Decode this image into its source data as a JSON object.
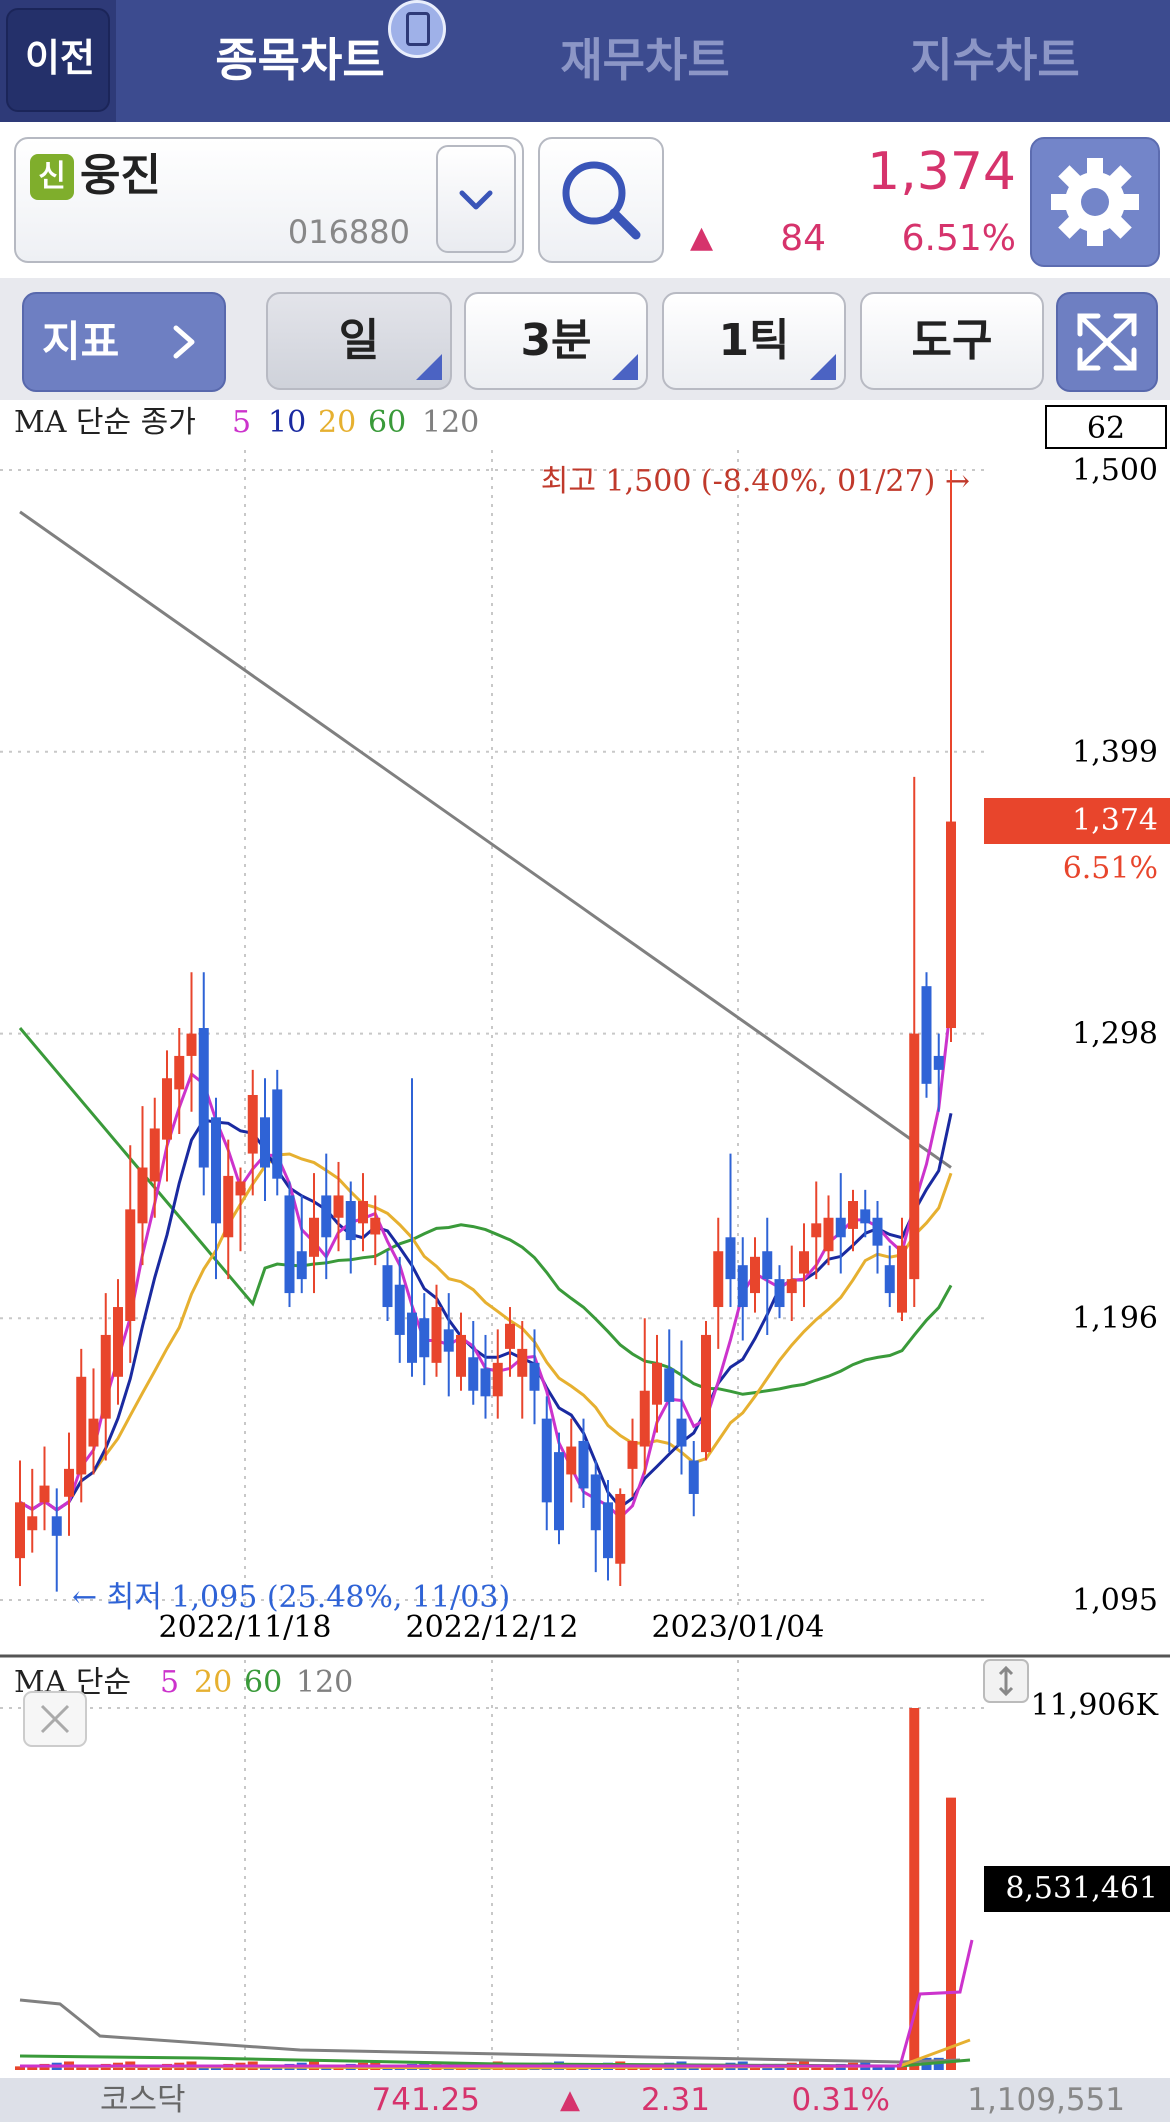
{
  "header": {
    "back_label": "이전",
    "tabs": [
      {
        "label": "종목차트",
        "active": true
      },
      {
        "label": "재무차트",
        "active": false
      },
      {
        "label": "지수차트",
        "active": false
      }
    ]
  },
  "stock": {
    "badge": "신",
    "name": "웅진",
    "code": "016880",
    "price": "1,374",
    "change": "84",
    "change_pct": "6.51%"
  },
  "toolbar": {
    "indicator_label": "지표",
    "period_label": "일",
    "minute_label": "3분",
    "tick_label": "1틱",
    "tools_label": "도구"
  },
  "price_chart": {
    "legend_prefix": "MA 단순 종가",
    "ma_periods": [
      "5",
      "10",
      "20",
      "60",
      "120"
    ],
    "count_box": "62",
    "y_labels": [
      "1,500",
      "1,399",
      "1,298",
      "1,196",
      "1,095"
    ],
    "current_price": "1,374",
    "current_pct": "6.51%",
    "high_annotation": "최고 1,500 (-8.40%, 01/27) →",
    "low_annotation": "← 최저 1,095 (25.48%, 11/03)",
    "x_labels": [
      "2022/11/18",
      "2022/12/12",
      "2023/01/04"
    ]
  },
  "volume_chart": {
    "legend_prefix": "MA 단순",
    "ma_periods": [
      "5",
      "20",
      "60",
      "120"
    ],
    "max_label": "11,906K",
    "current_volume": "8,531,461"
  },
  "footer": {
    "index_name": "코스닥",
    "index_value": "741.25",
    "index_change": "2.31",
    "index_pct": "0.31%",
    "index_volume": "1,109,551"
  },
  "colors": {
    "up": "#e8452c",
    "down": "#2f63d6",
    "ma5": "#cc33cc",
    "ma10": "#1a2aa0",
    "ma20": "#e6b030",
    "ma60": "#3a9a3a",
    "ma120": "#808080",
    "accent": "#d6336c",
    "header": "#3c4b8f"
  },
  "chart_data": {
    "type": "candlestick",
    "y_unit": "KRW",
    "ylim": [
      1095,
      1500
    ],
    "dates_labeled": [
      "2022/11/18",
      "2022/12/12",
      "2023/01/04"
    ],
    "candles": [
      [
        1110,
        1130,
        1100,
        1145
      ],
      [
        1120,
        1125,
        1112,
        1142
      ],
      [
        1130,
        1136,
        1120,
        1150
      ],
      [
        1125,
        1118,
        1098,
        1135
      ],
      [
        1132,
        1142,
        1118,
        1155
      ],
      [
        1140,
        1175,
        1130,
        1185
      ],
      [
        1150,
        1160,
        1140,
        1178
      ],
      [
        1160,
        1190,
        1145,
        1205
      ],
      [
        1175,
        1200,
        1165,
        1210
      ],
      [
        1195,
        1235,
        1180,
        1258
      ],
      [
        1230,
        1250,
        1215,
        1272
      ],
      [
        1245,
        1264,
        1232,
        1275
      ],
      [
        1260,
        1282,
        1245,
        1292
      ],
      [
        1278,
        1290,
        1262,
        1300
      ],
      [
        1290,
        1298,
        1270,
        1320
      ],
      [
        1300,
        1250,
        1240,
        1320
      ],
      [
        1268,
        1230,
        1210,
        1275
      ],
      [
        1225,
        1247,
        1210,
        1260
      ],
      [
        1240,
        1245,
        1220,
        1250
      ],
      [
        1255,
        1276,
        1240,
        1285
      ],
      [
        1268,
        1250,
        1238,
        1282
      ],
      [
        1278,
        1246,
        1240,
        1285
      ],
      [
        1240,
        1205,
        1200,
        1245
      ],
      [
        1220,
        1210,
        1205,
        1240
      ],
      [
        1218,
        1232,
        1205,
        1248
      ],
      [
        1240,
        1225,
        1210,
        1255
      ],
      [
        1232,
        1240,
        1220,
        1252
      ],
      [
        1238,
        1224,
        1212,
        1245
      ],
      [
        1230,
        1238,
        1220,
        1248
      ],
      [
        1226,
        1232,
        1215,
        1240
      ],
      [
        1215,
        1200,
        1195,
        1220
      ],
      [
        1208,
        1190,
        1180,
        1218
      ],
      [
        1198,
        1180,
        1175,
        1282
      ],
      [
        1196,
        1182,
        1172,
        1205
      ],
      [
        1180,
        1200,
        1175,
        1208
      ],
      [
        1192,
        1184,
        1168,
        1205
      ],
      [
        1175,
        1190,
        1170,
        1198
      ],
      [
        1182,
        1170,
        1165,
        1195
      ],
      [
        1178,
        1168,
        1160,
        1190
      ],
      [
        1168,
        1180,
        1160,
        1192
      ],
      [
        1185,
        1194,
        1175,
        1200
      ],
      [
        1175,
        1185,
        1160,
        1195
      ],
      [
        1180,
        1170,
        1158,
        1192
      ],
      [
        1160,
        1130,
        1120,
        1168
      ],
      [
        1148,
        1120,
        1115,
        1155
      ],
      [
        1140,
        1150,
        1130,
        1160
      ],
      [
        1152,
        1135,
        1128,
        1160
      ],
      [
        1140,
        1120,
        1105,
        1145
      ],
      [
        1130,
        1110,
        1102,
        1138
      ],
      [
        1108,
        1133,
        1100,
        1135
      ],
      [
        1142,
        1152,
        1132,
        1160
      ],
      [
        1150,
        1170,
        1140,
        1196
      ],
      [
        1165,
        1180,
        1155,
        1190
      ],
      [
        1178,
        1166,
        1148,
        1192
      ],
      [
        1160,
        1150,
        1140,
        1188
      ],
      [
        1145,
        1133,
        1125,
        1152
      ],
      [
        1148,
        1190,
        1145,
        1195
      ],
      [
        1200,
        1220,
        1185,
        1232
      ],
      [
        1225,
        1210,
        1200,
        1255
      ],
      [
        1215,
        1200,
        1188,
        1225
      ],
      [
        1205,
        1218,
        1198,
        1225
      ],
      [
        1220,
        1210,
        1190,
        1232
      ],
      [
        1210,
        1200,
        1196,
        1215
      ],
      [
        1205,
        1210,
        1195,
        1222
      ],
      [
        1212,
        1220,
        1200,
        1230
      ],
      [
        1225,
        1230,
        1210,
        1245
      ],
      [
        1220,
        1232,
        1215,
        1240
      ],
      [
        1232,
        1225,
        1212,
        1248
      ],
      [
        1228,
        1238,
        1220,
        1242
      ],
      [
        1235,
        1230,
        1225,
        1242
      ],
      [
        1232,
        1222,
        1212,
        1238
      ],
      [
        1215,
        1205,
        1200,
        1222
      ],
      [
        1198,
        1222,
        1195,
        1232
      ],
      [
        1210,
        1298,
        1200,
        1390
      ],
      [
        1315,
        1280,
        1275,
        1320
      ],
      [
        1290,
        1285,
        1270,
        1298
      ],
      [
        1300,
        1374,
        1295,
        1500
      ]
    ],
    "volume_max": 11906000,
    "current_volume": 8531461
  }
}
